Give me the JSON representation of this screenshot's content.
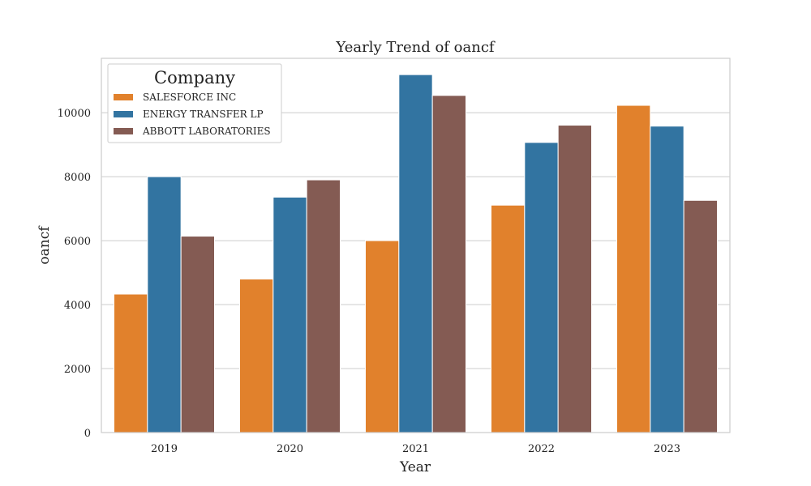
{
  "chart_data": {
    "type": "bar",
    "title": "Yearly Trend of oancf",
    "xlabel": "Year",
    "ylabel": "oancf",
    "categories": [
      "2019",
      "2020",
      "2021",
      "2022",
      "2023"
    ],
    "ylim": [
      0,
      11700
    ],
    "yticks": [
      0,
      2000,
      4000,
      6000,
      8000,
      10000
    ],
    "grid": true,
    "legend": {
      "title": "Company",
      "placement": "top-left"
    },
    "series": [
      {
        "name": "SALESFORCE INC",
        "color": "#e1812c",
        "values": [
          4330,
          4800,
          6000,
          7110,
          10230
        ]
      },
      {
        "name": "ENERGY TRANSFER LP",
        "color": "#3274a1",
        "values": [
          8000,
          7360,
          11190,
          9070,
          9580
        ]
      },
      {
        "name": "ABBOTT LABORATORIES",
        "color": "#845b53",
        "values": [
          6140,
          7900,
          10540,
          9610,
          7260
        ]
      }
    ]
  }
}
